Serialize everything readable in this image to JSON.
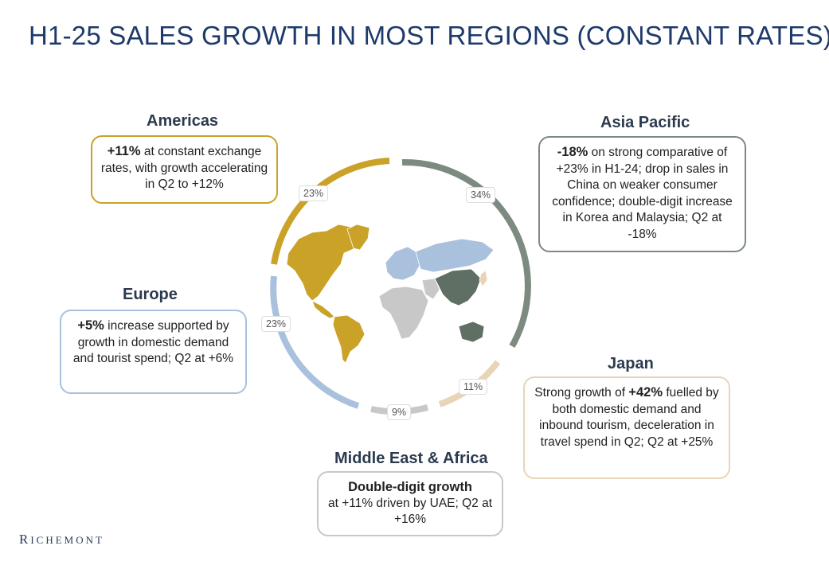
{
  "title": "H1-25 SALES GROWTH IN MOST REGIONS (CONSTANT RATES)",
  "regions": {
    "americas": {
      "name": "Americas",
      "share": "23%",
      "color": "#c9a227",
      "highlight": "+11%",
      "text": " at constant exchange rates, with growth accelerating in Q2 to +12%"
    },
    "asia_pacific": {
      "name": "Asia Pacific",
      "share": "34%",
      "color": "#7c8a80",
      "highlight": "-18%",
      "text": " on strong comparative of +23% in H1-24; drop in sales in China on weaker consumer confidence; double-digit increase in Korea and Malaysia; Q2 at -18%"
    },
    "europe": {
      "name": "Europe",
      "share": "23%",
      "color": "#a9c1dc",
      "highlight": "+5%",
      "text": " increase supported by growth in domestic demand and tourist spend; Q2 at +6%"
    },
    "japan": {
      "name": "Japan",
      "share": "11%",
      "color": "#e8d4b8",
      "pre": "Strong growth of ",
      "highlight": "+42%",
      "text": " fuelled by both domestic demand and inbound tourism, deceleration in travel spend in Q2; Q2 at +25%"
    },
    "mea": {
      "name": "Middle East & Africa",
      "share": "9%",
      "color": "#c8c8c8",
      "highlight": "Double-digit growth",
      "text": "at +11% driven by UAE; Q2 at +16%"
    }
  },
  "logo": {
    "first": "R",
    "rest": "ICHEMONT"
  }
}
